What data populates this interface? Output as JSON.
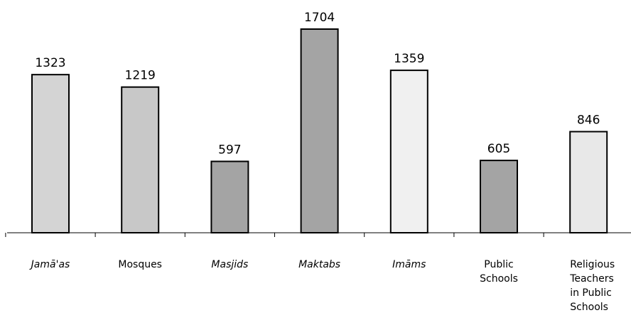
{
  "chart_data": {
    "type": "bar",
    "title": "",
    "xlabel": "",
    "ylabel": "",
    "ylim": [
      0,
      1704
    ],
    "grid": false,
    "legend": "none",
    "categories": [
      {
        "label": "Jamā'as",
        "italic": true
      },
      {
        "label": "Mosques",
        "italic": false
      },
      {
        "label": "Masjids",
        "italic": true
      },
      {
        "label": "Maktabs",
        "italic": true
      },
      {
        "label": "Imāms",
        "italic": true
      },
      {
        "label": "Public\nSchools",
        "italic": false
      },
      {
        "label": "Religious\nTeachers\nin Public\nSchools",
        "italic": false
      }
    ],
    "values": [
      1323,
      1219,
      597,
      1704,
      1359,
      605,
      846
    ],
    "bar_colors": [
      "#d4d4d4",
      "#c8c8c8",
      "#a4a4a4",
      "#a4a4a4",
      "#f0f0f0",
      "#a4a4a4",
      "#e8e8e8"
    ]
  }
}
